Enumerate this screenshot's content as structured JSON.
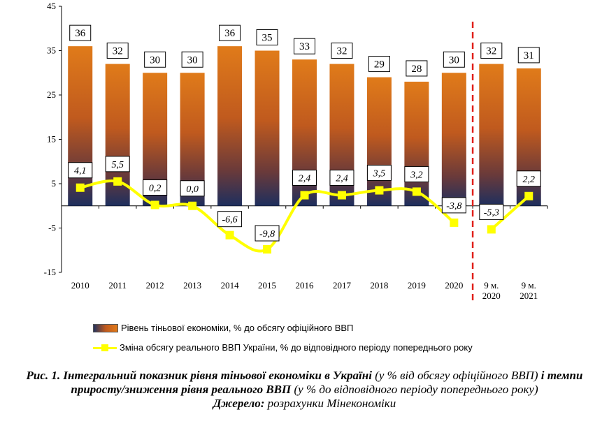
{
  "chart_data": {
    "type": "bar",
    "categories": [
      "2010",
      "2011",
      "2012",
      "2013",
      "2014",
      "2015",
      "2016",
      "2017",
      "2018",
      "2019",
      "2020",
      "9 м. 2020",
      "9 м. 2021"
    ],
    "series": [
      {
        "name": "Рівень тіньової економіки, % до обсягу офіційного ВВП",
        "type": "bar",
        "values": [
          36,
          32,
          30,
          30,
          36,
          35,
          33,
          32,
          29,
          28,
          30,
          32,
          31
        ],
        "labels": [
          "36",
          "32",
          "30",
          "30",
          "36",
          "35",
          "33",
          "32",
          "29",
          "28",
          "30",
          "32",
          "31"
        ]
      },
      {
        "name": "Зміна обсягу реального ВВП України, % до відповідного періоду попереднього року",
        "type": "line",
        "values": [
          4.1,
          5.5,
          0.2,
          0.0,
          -6.6,
          -9.8,
          2.4,
          2.4,
          3.5,
          3.2,
          -3.8,
          -5.3,
          2.2
        ],
        "labels": [
          "4,1",
          "5,5",
          "0,2",
          "0,0",
          "-6,6",
          "-9,8",
          "2,4",
          "2,4",
          "3,5",
          "3,2",
          "-3,8",
          "-5,3",
          "2,2"
        ]
      }
    ],
    "ylim": [
      -15,
      45
    ],
    "yticks": [
      -15,
      -5,
      5,
      15,
      25,
      35,
      45
    ],
    "ytick_labels": [
      "-15",
      "-5",
      "5",
      "15",
      "25",
      "35",
      "45"
    ],
    "category_lines": [
      [
        "2010"
      ],
      [
        "2011"
      ],
      [
        "2012"
      ],
      [
        "2013"
      ],
      [
        "2014"
      ],
      [
        "2015"
      ],
      [
        "2016"
      ],
      [
        "2017"
      ],
      [
        "2018"
      ],
      [
        "2019"
      ],
      [
        "2020"
      ],
      [
        "9 м.",
        "2020"
      ],
      [
        "9 м.",
        "2021"
      ]
    ],
    "separator_after_index": 10,
    "colors": {
      "bar_top": "#e07b1a",
      "bar_mid": "#c05a1e",
      "bar_bottom": "#1e2f5e",
      "line": "#ffff00",
      "separator": "#e0201b"
    }
  },
  "legend": {
    "bar_label": "Рівень тіньової економіки, % до обсягу офіційного ВВП",
    "line_label": "Зміна обсягу реального ВВП України, % до відповідного періоду попереднього року"
  },
  "caption": {
    "part1": "Рис. 1. Інтегральний показник рівня тіньової економіки в Україні",
    "part2": " (у % від обсягу офіційного ВВП) ",
    "part3": "і темпи приросту/зниження рівня реального ВВП",
    "part4": " (у % до відповідного періоду попереднього року)",
    "source_label": "Джерело:",
    "source_text": " розрахунки Мінекономіки"
  }
}
